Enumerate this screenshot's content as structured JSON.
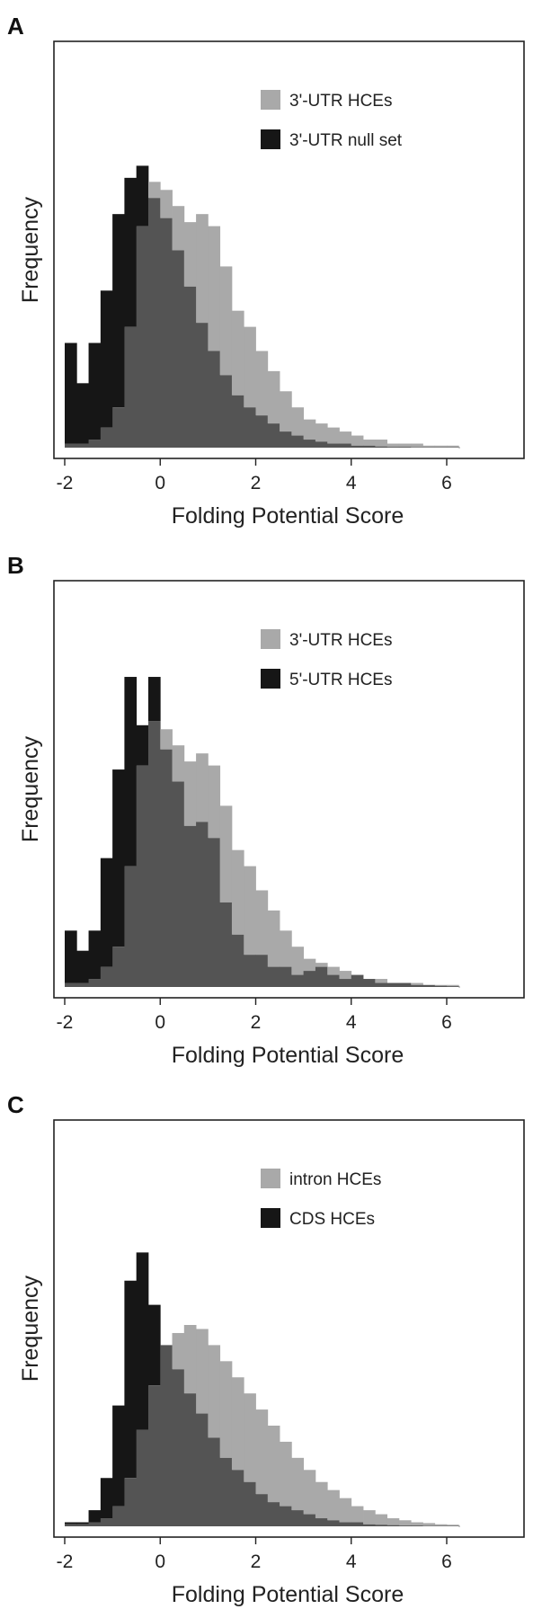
{
  "figure": {
    "panels": [
      {
        "letter": "A"
      },
      {
        "letter": "B"
      },
      {
        "letter": "C"
      }
    ]
  },
  "colors": {
    "light": "#a9a9a9",
    "overlap": "#545454",
    "dark": "#161616"
  },
  "chart_data": [
    {
      "type": "bar",
      "style": "overlaid step histogram",
      "panel": "A",
      "xlabel": "Folding Potential Score",
      "ylabel": "Frequency",
      "xlim": [
        -2,
        6.3
      ],
      "xticks": [
        -2,
        0,
        2,
        4,
        6
      ],
      "legend_position": "top-right",
      "bin_width": 0.25,
      "bin_start": -2,
      "y_units": "relative (no y-axis scale shown)",
      "series": [
        {
          "name": "3'-UTR HCEs",
          "color": "#a9a9a9",
          "values": [
            0.01,
            0.01,
            0.02,
            0.05,
            0.1,
            0.3,
            0.55,
            0.66,
            0.64,
            0.6,
            0.56,
            0.58,
            0.55,
            0.45,
            0.34,
            0.3,
            0.24,
            0.19,
            0.14,
            0.1,
            0.07,
            0.06,
            0.05,
            0.04,
            0.03,
            0.02,
            0.02,
            0.01,
            0.01,
            0.01,
            0.005,
            0.005,
            0.005
          ]
        },
        {
          "name": "3'-UTR null set",
          "color": "#161616",
          "values": [
            0.26,
            0.16,
            0.26,
            0.39,
            0.58,
            0.67,
            0.7,
            0.62,
            0.57,
            0.49,
            0.4,
            0.31,
            0.24,
            0.18,
            0.13,
            0.1,
            0.08,
            0.06,
            0.04,
            0.03,
            0.02,
            0.015,
            0.01,
            0.01,
            0.005,
            0.005,
            0.003,
            0.002,
            0.002,
            0.001,
            0.001,
            0.001,
            0.001
          ]
        }
      ]
    },
    {
      "type": "bar",
      "style": "overlaid step histogram",
      "panel": "B",
      "xlabel": "Folding Potential Score",
      "ylabel": "Frequency",
      "xlim": [
        -2,
        6.3
      ],
      "xticks": [
        -2,
        0,
        2,
        4,
        6
      ],
      "legend_position": "top-right",
      "bin_width": 0.25,
      "bin_start": -2,
      "y_units": "relative (no y-axis scale shown)",
      "series": [
        {
          "name": "3'-UTR HCEs",
          "color": "#a9a9a9",
          "values": [
            0.01,
            0.01,
            0.02,
            0.05,
            0.1,
            0.3,
            0.55,
            0.66,
            0.64,
            0.6,
            0.56,
            0.58,
            0.55,
            0.45,
            0.34,
            0.3,
            0.24,
            0.19,
            0.14,
            0.1,
            0.07,
            0.06,
            0.05,
            0.04,
            0.03,
            0.02,
            0.02,
            0.01,
            0.01,
            0.01,
            0.005,
            0.005,
            0.005
          ]
        },
        {
          "name": "5'-UTR HCEs",
          "color": "#161616",
          "values": [
            0.14,
            0.09,
            0.14,
            0.32,
            0.54,
            0.77,
            0.65,
            0.77,
            0.59,
            0.51,
            0.4,
            0.41,
            0.37,
            0.21,
            0.13,
            0.08,
            0.08,
            0.05,
            0.05,
            0.03,
            0.04,
            0.05,
            0.03,
            0.02,
            0.03,
            0.02,
            0.01,
            0.01,
            0.01,
            0.005,
            0.005,
            0.003,
            0.002
          ]
        }
      ]
    },
    {
      "type": "bar",
      "style": "overlaid step histogram",
      "panel": "C",
      "xlabel": "Folding Potential Score",
      "ylabel": "Frequency",
      "xlim": [
        -2,
        6.3
      ],
      "xticks": [
        -2,
        0,
        2,
        4,
        6
      ],
      "legend_position": "top-right",
      "bin_width": 0.25,
      "bin_start": -2,
      "y_units": "relative (no y-axis scale shown)",
      "series": [
        {
          "name": "intron HCEs",
          "color": "#a9a9a9",
          "values": [
            0.005,
            0.005,
            0.01,
            0.02,
            0.05,
            0.12,
            0.24,
            0.35,
            0.45,
            0.48,
            0.5,
            0.49,
            0.45,
            0.41,
            0.37,
            0.33,
            0.29,
            0.25,
            0.21,
            0.17,
            0.14,
            0.11,
            0.09,
            0.07,
            0.05,
            0.04,
            0.03,
            0.02,
            0.015,
            0.01,
            0.008,
            0.005,
            0.004
          ]
        },
        {
          "name": "CDS HCEs",
          "color": "#161616",
          "values": [
            0.01,
            0.01,
            0.04,
            0.12,
            0.3,
            0.61,
            0.68,
            0.55,
            0.45,
            0.39,
            0.33,
            0.28,
            0.22,
            0.17,
            0.14,
            0.11,
            0.08,
            0.06,
            0.05,
            0.04,
            0.03,
            0.02,
            0.015,
            0.01,
            0.01,
            0.005,
            0.004,
            0.003,
            0.002,
            0.002,
            0.001,
            0.001,
            0.001
          ]
        }
      ]
    }
  ]
}
